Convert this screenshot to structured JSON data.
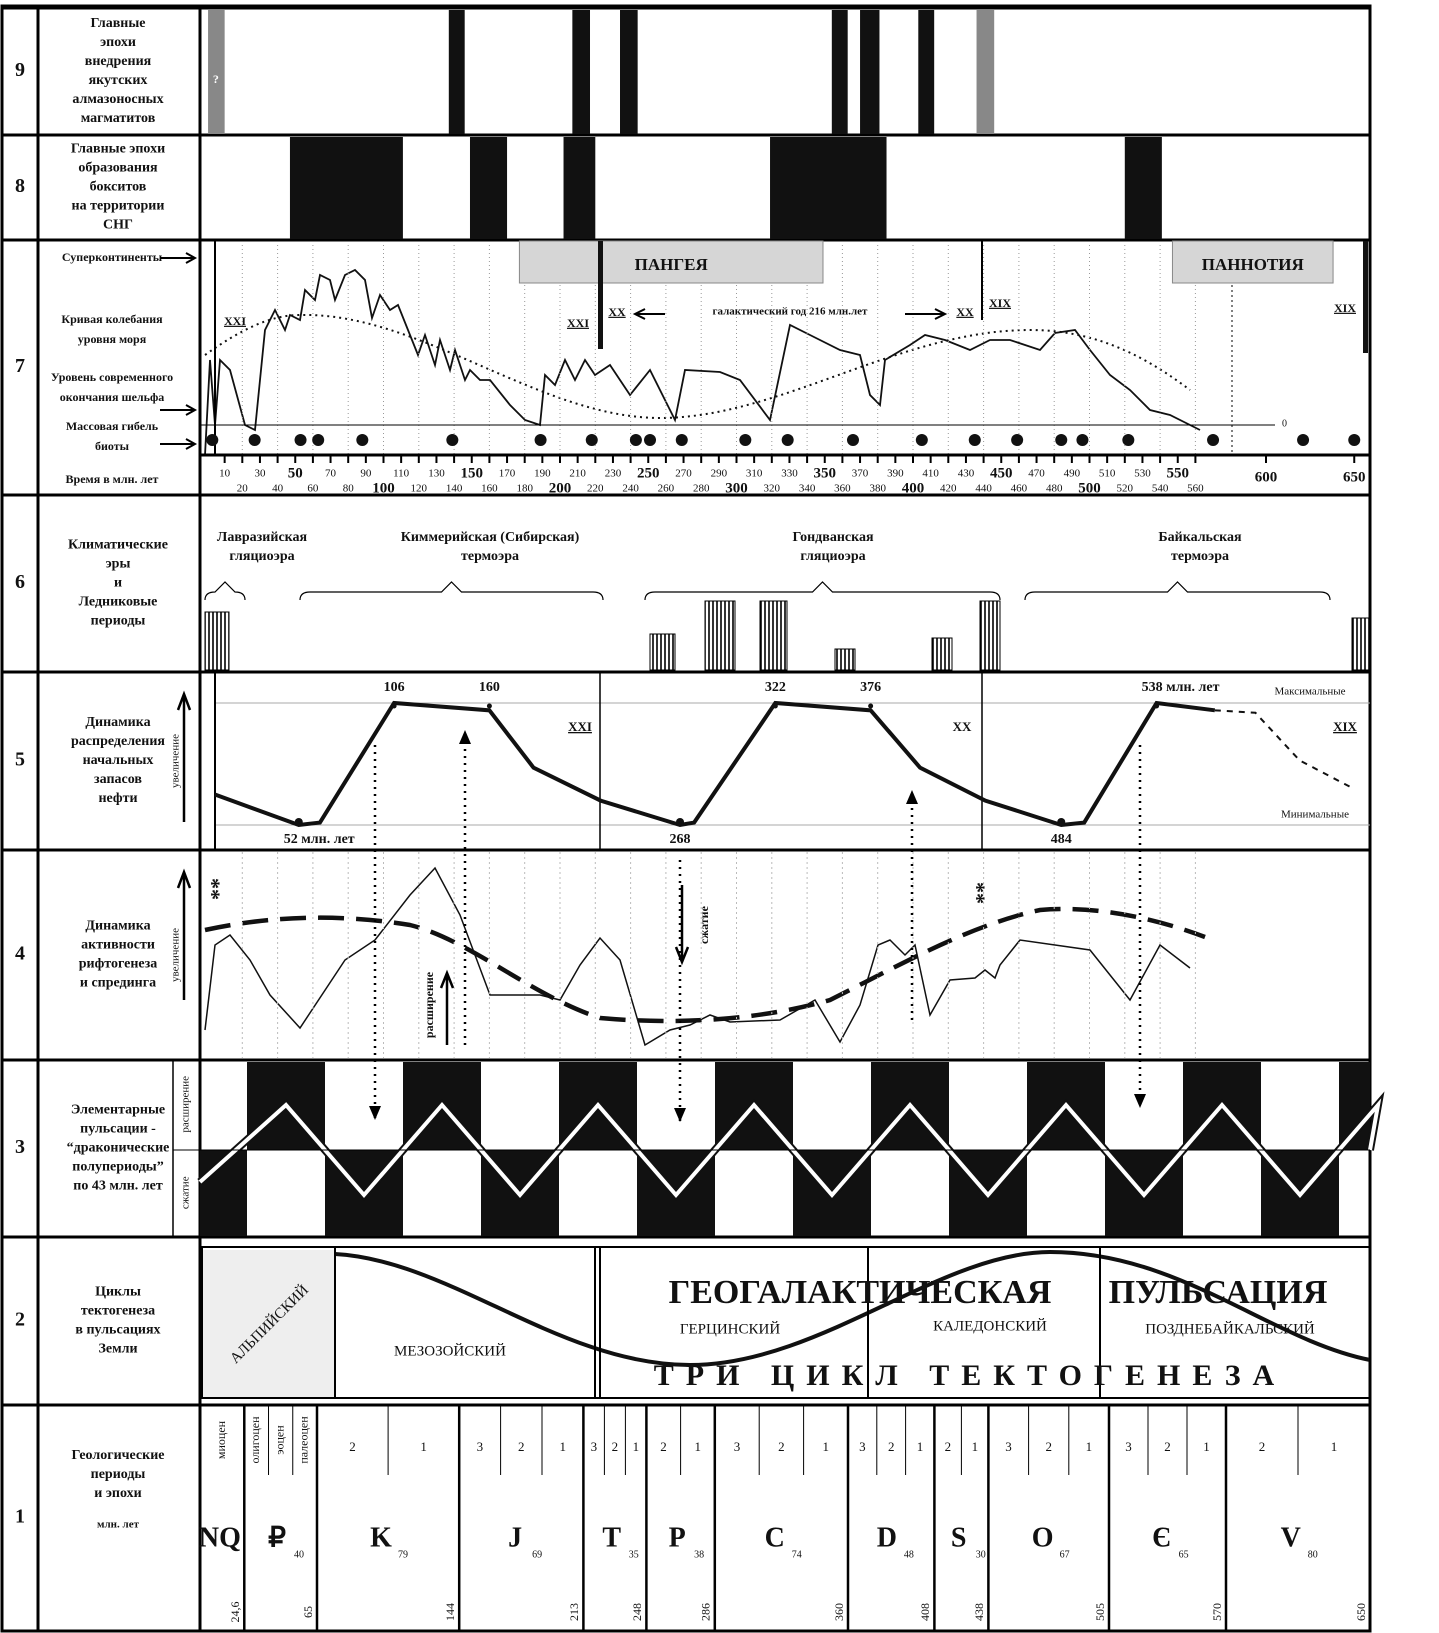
{
  "rows": [
    {
      "number": "9",
      "label": [
        [
          "Главные",
          "эпохи",
          "внедрения",
          "якутских",
          "алмазоносных",
          "магматитов"
        ]
      ]
    },
    {
      "number": "8",
      "label": [
        [
          "Главные эпохи",
          "образования",
          "бокситов",
          "на территории",
          "СНГ"
        ]
      ]
    },
    {
      "number": "7",
      "label": [
        [
          "Суперконтиненты"
        ],
        [
          "Кривая колебания",
          "уровня моря"
        ],
        [
          "Уровень современного",
          "окончания шельфа"
        ],
        [
          "Массовая гибель",
          "биоты"
        ],
        [
          "Время в млн. лет"
        ]
      ]
    },
    {
      "number": "6",
      "label": [
        [
          "Климатические",
          "эры",
          "и",
          "Ледниковые",
          "периоды"
        ]
      ]
    },
    {
      "number": "5",
      "label": [
        [
          "Динамика",
          "распределения",
          "начальных",
          "запасов",
          "нефти"
        ]
      ],
      "side": [
        "увеличение"
      ]
    },
    {
      "number": "4",
      "label": [
        [
          "Динамика",
          "активности",
          "рифтогенеза",
          "и спрединга"
        ]
      ],
      "side": [
        "увеличение"
      ]
    },
    {
      "number": "3",
      "label": [
        [
          "Элементарные",
          "пульсации -",
          "“драконические",
          "полупериоды”",
          "по 43 млн. лет"
        ]
      ],
      "side": [
        "расширение",
        "сжатие"
      ]
    },
    {
      "number": "2",
      "label": [
        [
          "Циклы",
          "тектогенеза",
          "в пульсациях",
          "Земли"
        ]
      ]
    },
    {
      "number": "1",
      "label": [
        [
          "Геологические",
          "периоды",
          "и эпохи"
        ],
        [
          "млн. лет"
        ]
      ]
    }
  ],
  "diamonds": {
    "question": "?",
    "epochs": [
      {
        "from": 0.6,
        "to": 10,
        "uncertain": true
      },
      {
        "from": 137,
        "to": 146
      },
      {
        "from": 207,
        "to": 217
      },
      {
        "from": 234,
        "to": 244
      },
      {
        "from": 354,
        "to": 363
      },
      {
        "from": 370,
        "to": 381
      },
      {
        "from": 403,
        "to": 412
      },
      {
        "from": 436,
        "to": 446,
        "uncertain": true
      }
    ]
  },
  "bauxites": {
    "epochs": [
      [
        47,
        111
      ],
      [
        149,
        170
      ],
      [
        202,
        220
      ],
      [
        319,
        385
      ],
      [
        520,
        541
      ]
    ]
  },
  "sea_level": {
    "supercontinents": [
      {
        "name": "ПАНГЕЯ",
        "from": 177,
        "to": 349
      },
      {
        "name": "ПАННОТИЯ",
        "from": 547,
        "to": 638
      }
    ],
    "cycle_labels": [
      "XXI",
      "XXI",
      "XX",
      "XX",
      "XIX",
      "XIX"
    ],
    "galactic_year": "галактический год  216 млн.лет",
    "zero": "0",
    "mass_extinctions": [
      3,
      27,
      53,
      63,
      88,
      139,
      189,
      218,
      243,
      251,
      269,
      305,
      329,
      366,
      405,
      435,
      459,
      484,
      496,
      522,
      570,
      621,
      650
    ],
    "ticks": [
      10,
      20,
      30,
      40,
      50,
      60,
      70,
      80,
      90,
      100,
      110,
      120,
      130,
      140,
      150,
      160,
      170,
      180,
      190,
      200,
      210,
      220,
      230,
      240,
      250,
      260,
      270,
      280,
      290,
      300,
      310,
      320,
      330,
      340,
      350,
      360,
      370,
      380,
      390,
      400,
      410,
      420,
      430,
      440,
      450,
      460,
      470,
      480,
      490,
      500,
      510,
      520,
      530,
      540,
      550,
      560,
      600,
      650
    ]
  },
  "climate": {
    "eras": [
      [
        "Лавразийская",
        "гляциоэра"
      ],
      [
        "Киммерийская (Сибирская)",
        "термоэра"
      ],
      [
        "Гондванская",
        "гляциоэра"
      ],
      [
        "Байкальская",
        "термоэра"
      ]
    ]
  },
  "oil": {
    "points": [
      [
        4.5,
        25
      ],
      [
        52,
        0
      ],
      [
        64,
        2
      ],
      [
        106,
        100
      ],
      [
        160,
        94
      ],
      [
        185,
        47
      ],
      [
        223,
        20
      ],
      [
        268,
        0
      ],
      [
        276,
        2
      ],
      [
        322,
        100
      ],
      [
        376,
        94
      ],
      [
        404,
        47
      ],
      [
        441,
        20
      ],
      [
        484,
        0
      ],
      [
        497,
        2
      ],
      [
        538,
        100
      ],
      [
        571,
        94
      ]
    ],
    "forecast": [
      [
        571,
        94
      ],
      [
        594,
        92
      ],
      [
        619,
        53
      ],
      [
        648,
        31
      ]
    ],
    "peaks": [
      106,
      160,
      322,
      376,
      {
        "value": 538,
        "label": "538 млн. лет"
      }
    ],
    "troughs": [
      {
        "value": 52,
        "label": "52 млн. лет"
      },
      268,
      484
    ],
    "max": "Максимальные",
    "min": "Минимальные",
    "cycles": [
      "XXI",
      "XX",
      "XIX"
    ]
  },
  "rifting": {
    "expansion": "расширение",
    "compression": "сжатие",
    "stars": [
      "**",
      "**"
    ]
  },
  "tectogenesis": {
    "title": [
      "ГЕОГАЛАКТИЧЕСКАЯ",
      "ПУЛЬСАЦИЯ"
    ],
    "subtitle": "ТРИ ЦИКЛ ТЕКТОГЕНЕЗА",
    "cycles": [
      "АЛЬПИЙСКИЙ",
      "МЕЗОЗОЙСКИЙ",
      "ГЕРЦИНСКИЙ",
      "КАЛЕДОНСКИЙ",
      "ПОЗДНЕБАЙКАЛЬСКИЙ"
    ]
  },
  "periods": [
    {
      "symbol": "NQ",
      "epochs": [
        "миоцен"
      ],
      "end": {
        "value": 24.6,
        "label": "24,6"
      }
    },
    {
      "symbol": "₽",
      "duration": 40,
      "epochs": [
        "олигоцен",
        "эоцен",
        "палеоцен"
      ],
      "end": 65
    },
    {
      "symbol": "K",
      "duration": 79,
      "epochs": [
        "2",
        "1"
      ],
      "end": 144
    },
    {
      "symbol": "J",
      "duration": 69,
      "epochs": [
        "3",
        "2",
        "1"
      ],
      "end": 213
    },
    {
      "symbol": "T",
      "duration": 35,
      "epochs": [
        "3",
        "2",
        "1"
      ],
      "end": 248
    },
    {
      "symbol": "P",
      "duration": 38,
      "epochs": [
        "2",
        "1"
      ],
      "end": 286
    },
    {
      "symbol": "C",
      "duration": 74,
      "epochs": [
        "3",
        "2",
        "1"
      ],
      "end": 360
    },
    {
      "symbol": "D",
      "duration": 48,
      "epochs": [
        "3",
        "2",
        "1"
      ],
      "end": 408
    },
    {
      "symbol": "S",
      "duration": 30,
      "epochs": [
        "2",
        "1"
      ],
      "end": 438
    },
    {
      "symbol": "O",
      "duration": 67,
      "epochs": [
        "3",
        "2",
        "1"
      ],
      "end": 505
    },
    {
      "symbol": "Є",
      "duration": 65,
      "epochs": [
        "3",
        "2",
        "1"
      ],
      "end": 570
    },
    {
      "symbol": "V",
      "duration": 80,
      "epochs": [
        "2",
        "1"
      ],
      "end": 650
    }
  ]
}
